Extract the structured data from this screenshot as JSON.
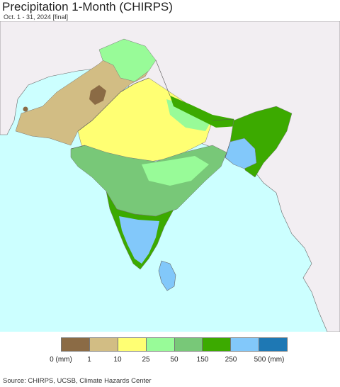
{
  "header": {
    "title": "Precipitation 1-Month (CHIRPS)",
    "subtitle": "Oct. 1 - 31, 2024 [final]"
  },
  "legend": {
    "unit_left": "0 (mm)",
    "unit_right": "500 (mm)",
    "colors": [
      "#8b6b45",
      "#d2bd84",
      "#ffff73",
      "#98fb98",
      "#78c878",
      "#3caa00",
      "#82c8fa",
      "#1e78b4"
    ],
    "tick_labels": [
      "0 (mm)",
      "1",
      "10",
      "25",
      "50",
      "150",
      "250",
      "500 (mm)"
    ]
  },
  "colors": {
    "ocean": "#ccffff",
    "land_other": "#f2eef2",
    "border": "#555555"
  },
  "footer": {
    "source": "Source: CHIRPS, UCSB, Climate Hazards Center"
  }
}
